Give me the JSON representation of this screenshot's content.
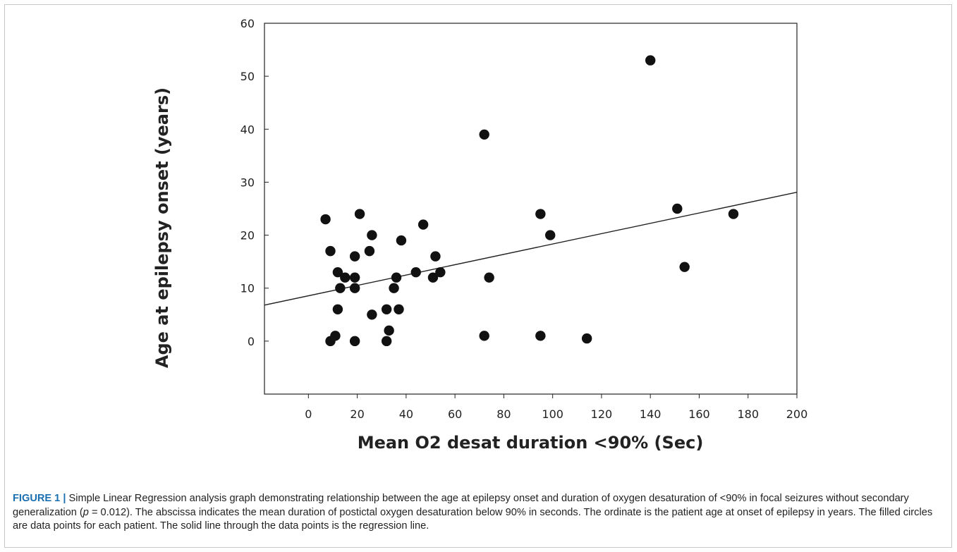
{
  "chart_data": {
    "type": "scatter",
    "xlabel": "Mean O2 desat duration <90% (Sec)",
    "ylabel": "Age at epilepsy onset (years)",
    "xlim": [
      -18,
      200
    ],
    "ylim": [
      -10,
      60
    ],
    "x_ticks": [
      0,
      20,
      40,
      60,
      80,
      100,
      120,
      140,
      160,
      180,
      200
    ],
    "y_ticks": [
      0,
      10,
      20,
      30,
      40,
      50,
      60
    ],
    "grid": false,
    "series": [
      {
        "points": [
          {
            "x": 7,
            "y": 23
          },
          {
            "x": 9,
            "y": 17
          },
          {
            "x": 9,
            "y": 0
          },
          {
            "x": 11,
            "y": 1
          },
          {
            "x": 12,
            "y": 13
          },
          {
            "x": 12,
            "y": 6
          },
          {
            "x": 13,
            "y": 10
          },
          {
            "x": 15,
            "y": 12
          },
          {
            "x": 19,
            "y": 16
          },
          {
            "x": 19,
            "y": 12
          },
          {
            "x": 19,
            "y": 10
          },
          {
            "x": 19,
            "y": 0
          },
          {
            "x": 21,
            "y": 24
          },
          {
            "x": 25,
            "y": 17
          },
          {
            "x": 26,
            "y": 20
          },
          {
            "x": 26,
            "y": 5
          },
          {
            "x": 32,
            "y": 6
          },
          {
            "x": 32,
            "y": 0
          },
          {
            "x": 33,
            "y": 2
          },
          {
            "x": 35,
            "y": 10
          },
          {
            "x": 36,
            "y": 12
          },
          {
            "x": 37,
            "y": 6
          },
          {
            "x": 38,
            "y": 19
          },
          {
            "x": 44,
            "y": 13
          },
          {
            "x": 47,
            "y": 22
          },
          {
            "x": 51,
            "y": 12
          },
          {
            "x": 52,
            "y": 16
          },
          {
            "x": 54,
            "y": 13
          },
          {
            "x": 72,
            "y": 39
          },
          {
            "x": 72,
            "y": 1
          },
          {
            "x": 74,
            "y": 12
          },
          {
            "x": 95,
            "y": 24
          },
          {
            "x": 95,
            "y": 1
          },
          {
            "x": 99,
            "y": 20
          },
          {
            "x": 114,
            "y": 0.5
          },
          {
            "x": 140,
            "y": 53
          },
          {
            "x": 151,
            "y": 25
          },
          {
            "x": 154,
            "y": 14
          },
          {
            "x": 174,
            "y": 24
          }
        ]
      }
    ],
    "regression_line": {
      "x": [
        -18,
        200
      ],
      "y": [
        6.8,
        28.1
      ]
    }
  },
  "caption": {
    "label": "FIGURE 1 |",
    "text_before_p": " Simple Linear Regression analysis graph demonstrating relationship between the age at epilepsy onset and duration of oxygen desaturation of <90% in focal seizures without secondary generalization (",
    "p_symbol": "p",
    "text_after_p": " = 0.012). The abscissa indicates the mean duration of postictal oxygen desaturation below 90% in seconds. The ordinate is the patient age at onset of epilepsy in years. The filled circles are data points for each patient. The solid line through the data points is the regression line."
  }
}
